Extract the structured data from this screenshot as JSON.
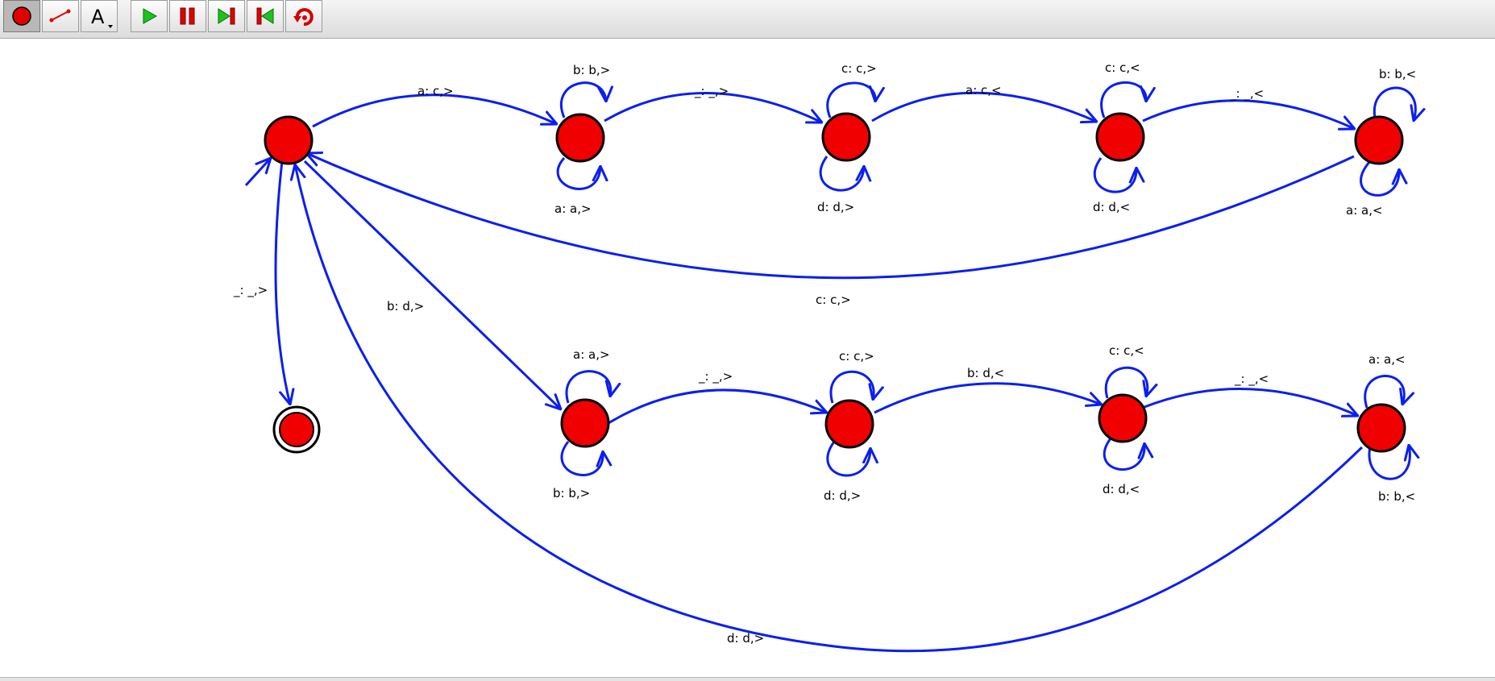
{
  "toolbar": {
    "buttons": [
      {
        "id": "state-tool",
        "icon": "state-tool-icon",
        "active": true
      },
      {
        "id": "transition-tool",
        "icon": "transition-arrow-icon",
        "active": false
      },
      {
        "id": "label-tool",
        "icon": "text-label-icon",
        "label": "A",
        "active": false
      },
      {
        "id": "run",
        "icon": "play-icon",
        "active": false
      },
      {
        "id": "pause",
        "icon": "pause-icon",
        "active": false
      },
      {
        "id": "step-forward",
        "icon": "step-forward-icon",
        "active": false
      },
      {
        "id": "step-back",
        "icon": "step-back-icon",
        "active": false
      },
      {
        "id": "reset",
        "icon": "reset-icon",
        "active": false
      }
    ]
  },
  "colors": {
    "edge": "#0b1ef2",
    "state_fill": "#f00000",
    "state_stroke": "#000000"
  },
  "automaton": {
    "states": [
      {
        "id": "q0",
        "initial": true,
        "final": false
      },
      {
        "id": "q1"
      },
      {
        "id": "q2"
      },
      {
        "id": "q3"
      },
      {
        "id": "q4"
      },
      {
        "id": "q5"
      },
      {
        "id": "q6"
      },
      {
        "id": "q7"
      },
      {
        "id": "q8"
      },
      {
        "id": "qf",
        "final": true
      }
    ],
    "transitions": [
      {
        "from": "q0",
        "to": "q1",
        "label": "a: c,>"
      },
      {
        "from": "q1",
        "to": "q1",
        "label": "b: b,>"
      },
      {
        "from": "q1",
        "to": "q1",
        "label": "a: a,>"
      },
      {
        "from": "q1",
        "to": "q2",
        "label": "_: _,>"
      },
      {
        "from": "q2",
        "to": "q2",
        "label": "c: c,>"
      },
      {
        "from": "q2",
        "to": "q2",
        "label": "d: d,>"
      },
      {
        "from": "q2",
        "to": "q3",
        "label": "a: c,<"
      },
      {
        "from": "q3",
        "to": "q3",
        "label": "c: c,<"
      },
      {
        "from": "q3",
        "to": "q3",
        "label": "d: d,<"
      },
      {
        "from": "q3",
        "to": "q4",
        "label": "_: _,<"
      },
      {
        "from": "q4",
        "to": "q4",
        "label": "b: b,<"
      },
      {
        "from": "q4",
        "to": "q4",
        "label": "a: a,<"
      },
      {
        "from": "q4",
        "to": "q0",
        "label": "c: c,>"
      },
      {
        "from": "q0",
        "to": "qf",
        "label": "_: _,>"
      },
      {
        "from": "q0",
        "to": "q5",
        "label": "b: d,>"
      },
      {
        "from": "q5",
        "to": "q5",
        "label": "a: a,>"
      },
      {
        "from": "q5",
        "to": "q5",
        "label": "b: b,>"
      },
      {
        "from": "q5",
        "to": "q6",
        "label": "_: _,>"
      },
      {
        "from": "q6",
        "to": "q6",
        "label": "c: c,>"
      },
      {
        "from": "q6",
        "to": "q6",
        "label": "d: d,>"
      },
      {
        "from": "q6",
        "to": "q7",
        "label": "b: d,<"
      },
      {
        "from": "q7",
        "to": "q7",
        "label": "c: c,<"
      },
      {
        "from": "q7",
        "to": "q7",
        "label": "d: d,<"
      },
      {
        "from": "q7",
        "to": "q8",
        "label": "_: _,<"
      },
      {
        "from": "q8",
        "to": "q8",
        "label": "a: a,<"
      },
      {
        "from": "q8",
        "to": "q8",
        "label": "b: b,<"
      },
      {
        "from": "q8",
        "to": "q0",
        "label": "d: d,>"
      }
    ]
  }
}
